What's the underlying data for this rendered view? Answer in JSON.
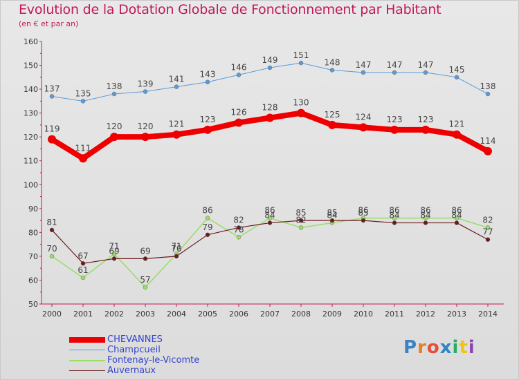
{
  "title": "Evolution de la Dotation Globale de Fonctionnement par Habitant",
  "subtitle": "(en € et par an)",
  "logo_text": "Proxiti",
  "chart_data": {
    "type": "line",
    "x": [
      "2000",
      "2001",
      "2002",
      "2003",
      "2004",
      "2005",
      "2006",
      "2007",
      "2008",
      "2009",
      "2010",
      "2011",
      "2012",
      "2013",
      "2014"
    ],
    "ylim": [
      50,
      160
    ],
    "yticks": [
      50,
      60,
      70,
      80,
      90,
      100,
      110,
      120,
      130,
      140,
      150,
      160
    ],
    "grid": false,
    "legend_position": "bottom-left",
    "series": [
      {
        "name": "CHEVANNES",
        "color": "#ee0000",
        "width": 8,
        "marker": 6,
        "values": [
          119,
          111,
          120,
          120,
          121,
          123,
          126,
          128,
          130,
          125,
          124,
          123,
          123,
          121,
          114
        ]
      },
      {
        "name": "Champcueil",
        "color": "#5b9bd5",
        "width": 1,
        "marker": 3,
        "values": [
          137,
          135,
          138,
          139,
          141,
          143,
          146,
          149,
          151,
          148,
          147,
          147,
          147,
          145,
          138
        ]
      },
      {
        "name": "Fontenay-le-Vicomte",
        "color": "#99dd66",
        "width": 1.5,
        "marker": 3,
        "values": [
          70,
          61,
          71,
          57,
          71,
          86,
          78,
          86,
          82,
          84,
          86,
          86,
          86,
          86,
          82
        ]
      },
      {
        "name": "Auvernaux",
        "color": "#6b1a1a",
        "width": 1.2,
        "marker": 3,
        "values": [
          81,
          67,
          69,
          69,
          70,
          79,
          82,
          84,
          85,
          85,
          85,
          84,
          84,
          84,
          77
        ]
      }
    ]
  }
}
